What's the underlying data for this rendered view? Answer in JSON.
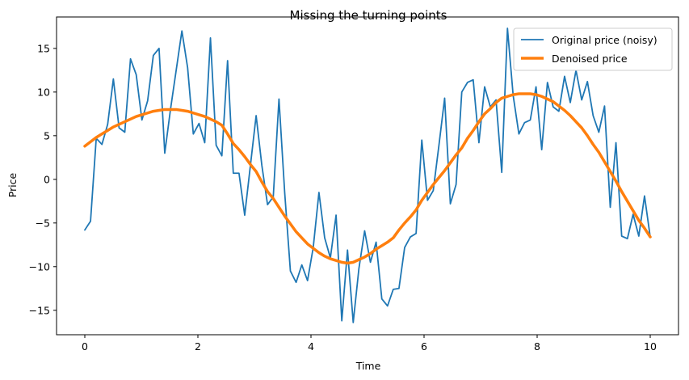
{
  "chart_data": {
    "type": "line",
    "title": "Missing the turning points",
    "xlabel": "Time",
    "ylabel": "Price",
    "xlim": [
      -0.5,
      10.5
    ],
    "ylim": [
      -17.8,
      18.6
    ],
    "xticks": [
      0,
      2,
      4,
      6,
      8,
      10
    ],
    "yticks": [
      -15,
      -10,
      -5,
      0,
      5,
      10,
      15
    ],
    "grid": false,
    "legend_position": "top-right",
    "x": [
      0,
      0.101,
      0.202,
      0.303,
      0.404,
      0.505,
      0.606,
      0.707,
      0.808,
      0.909,
      1.01,
      1.111,
      1.212,
      1.313,
      1.414,
      1.515,
      1.616,
      1.717,
      1.818,
      1.919,
      2.02,
      2.121,
      2.222,
      2.323,
      2.424,
      2.525,
      2.626,
      2.727,
      2.828,
      2.929,
      3.03,
      3.131,
      3.232,
      3.333,
      3.434,
      3.535,
      3.636,
      3.737,
      3.838,
      3.939,
      4.04,
      4.141,
      4.242,
      4.343,
      4.444,
      4.545,
      4.646,
      4.747,
      4.848,
      4.949,
      5.051,
      5.152,
      5.253,
      5.354,
      5.455,
      5.556,
      5.657,
      5.758,
      5.859,
      5.96,
      6.061,
      6.162,
      6.263,
      6.364,
      6.465,
      6.566,
      6.667,
      6.768,
      6.869,
      6.97,
      7.071,
      7.172,
      7.273,
      7.374,
      7.475,
      7.576,
      7.677,
      7.778,
      7.879,
      7.98,
      8.081,
      8.182,
      8.283,
      8.384,
      8.485,
      8.586,
      8.687,
      8.788,
      8.889,
      8.99,
      9.091,
      9.192,
      9.293,
      9.394,
      9.495,
      9.596,
      9.697,
      9.798,
      9.899,
      10
    ],
    "series": [
      {
        "name": "Original price (noisy)",
        "color": "#1f77b4",
        "values": [
          -5.8,
          -4.8,
          4.7,
          4.0,
          6.3,
          11.5,
          5.9,
          5.4,
          13.8,
          12.0,
          6.8,
          9.0,
          14.2,
          15.0,
          3.0,
          8.0,
          12.5,
          17.0,
          12.8,
          5.2,
          6.4,
          4.2,
          16.2,
          3.9,
          2.7,
          13.6,
          0.7,
          0.7,
          -4.1,
          1.6,
          7.3,
          1.6,
          -2.9,
          -2.0,
          9.2,
          -1.5,
          -10.5,
          -11.8,
          -9.8,
          -11.6,
          -7.8,
          -1.5,
          -6.7,
          -9.0,
          -4.1,
          -16.2,
          -8.1,
          -16.4,
          -10.2,
          -5.9,
          -9.5,
          -7.2,
          -13.7,
          -14.5,
          -12.6,
          -12.5,
          -7.8,
          -6.6,
          -6.2,
          4.5,
          -2.4,
          -1.3,
          3.9,
          9.3,
          -2.8,
          -0.6,
          10.0,
          11.1,
          11.4,
          4.2,
          10.6,
          8.3,
          9.1,
          0.8,
          17.3,
          9.6,
          5.2,
          6.5,
          6.8,
          10.6,
          3.4,
          11.1,
          8.3,
          7.8,
          11.8,
          8.8,
          12.5,
          9.1,
          11.2,
          7.3,
          5.4,
          8.4,
          -3.2,
          4.2,
          -6.5,
          -6.8,
          -4.0,
          -6.5,
          -1.9,
          -6.6
        ]
      },
      {
        "name": "Denoised price",
        "color": "#ff7f0e",
        "values": [
          3.8,
          4.3,
          4.8,
          5.2,
          5.6,
          6.0,
          6.3,
          6.6,
          6.9,
          7.2,
          7.4,
          7.6,
          7.8,
          7.9,
          8.0,
          8.0,
          8.0,
          7.9,
          7.8,
          7.6,
          7.4,
          7.2,
          6.9,
          6.6,
          6.2,
          5.2,
          4.1,
          3.4,
          2.6,
          1.7,
          0.9,
          -0.3,
          -1.4,
          -2.2,
          -3.2,
          -4.2,
          -5.1,
          -6.0,
          -6.7,
          -7.4,
          -7.9,
          -8.4,
          -8.8,
          -9.1,
          -9.3,
          -9.5,
          -9.6,
          -9.5,
          -9.2,
          -8.9,
          -8.5,
          -8.0,
          -7.6,
          -7.2,
          -6.7,
          -5.8,
          -5.0,
          -4.3,
          -3.5,
          -2.4,
          -1.5,
          -0.6,
          0.2,
          1.0,
          1.9,
          2.8,
          3.6,
          4.7,
          5.6,
          6.6,
          7.5,
          8.1,
          8.8,
          9.3,
          9.5,
          9.7,
          9.8,
          9.8,
          9.8,
          9.7,
          9.5,
          9.2,
          8.9,
          8.4,
          7.9,
          7.3,
          6.6,
          5.9,
          5.0,
          4.0,
          3.1,
          2.0,
          0.9,
          -0.2,
          -1.4,
          -2.5,
          -3.6,
          -4.7,
          -5.6,
          -6.6
        ]
      }
    ]
  }
}
